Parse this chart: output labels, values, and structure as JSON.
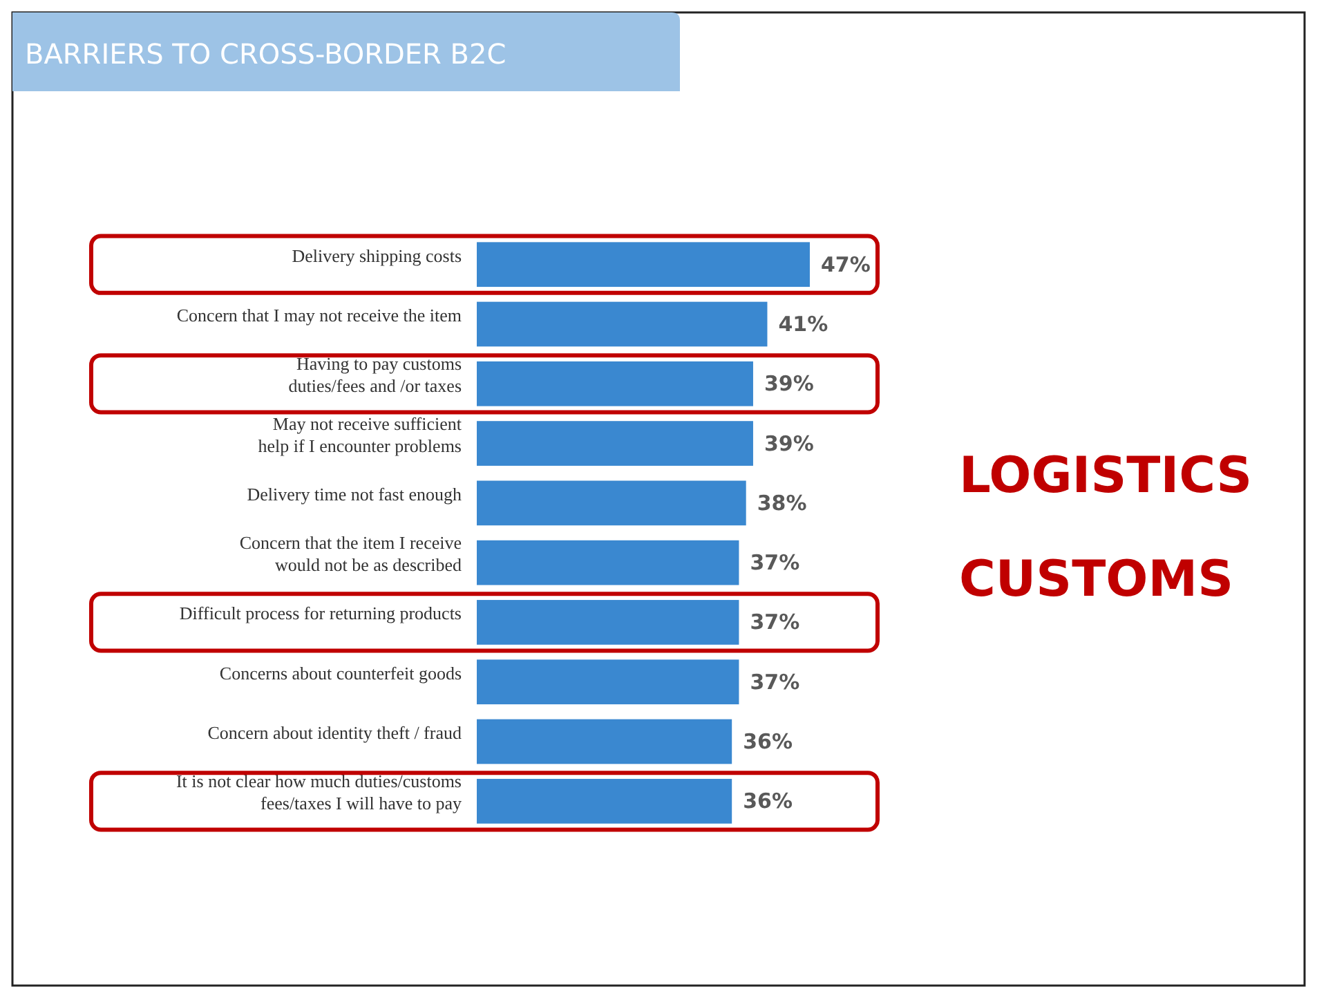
{
  "chart_data": {
    "type": "bar",
    "orientation": "horizontal",
    "title": "BARRIERS TO CROSS-BORDER B2C",
    "categories": [
      "Delivery shipping costs",
      "Concern that I may not receive the item",
      "Having to pay customs\nduties/fees and /or taxes",
      "May not receive sufficient\nhelp if I encounter problems",
      "Delivery time not fast enough",
      "Concern that the item I receive\nwould not be as described",
      "Difficult process for returning products",
      "Concerns about counterfeit goods",
      "Concern about identity theft / fraud",
      "It is not clear how much duties/customs\nfees/taxes I will have to pay"
    ],
    "values": [
      47,
      41,
      39,
      39,
      38,
      37,
      37,
      37,
      36,
      36
    ],
    "value_labels": [
      "47%",
      "41%",
      "39%",
      "39%",
      "38%",
      "37%",
      "37%",
      "37%",
      "36%",
      "36%"
    ],
    "color": "#3a88d0",
    "annotations": [
      "LOGISTICS",
      "CUSTOMS"
    ]
  }
}
